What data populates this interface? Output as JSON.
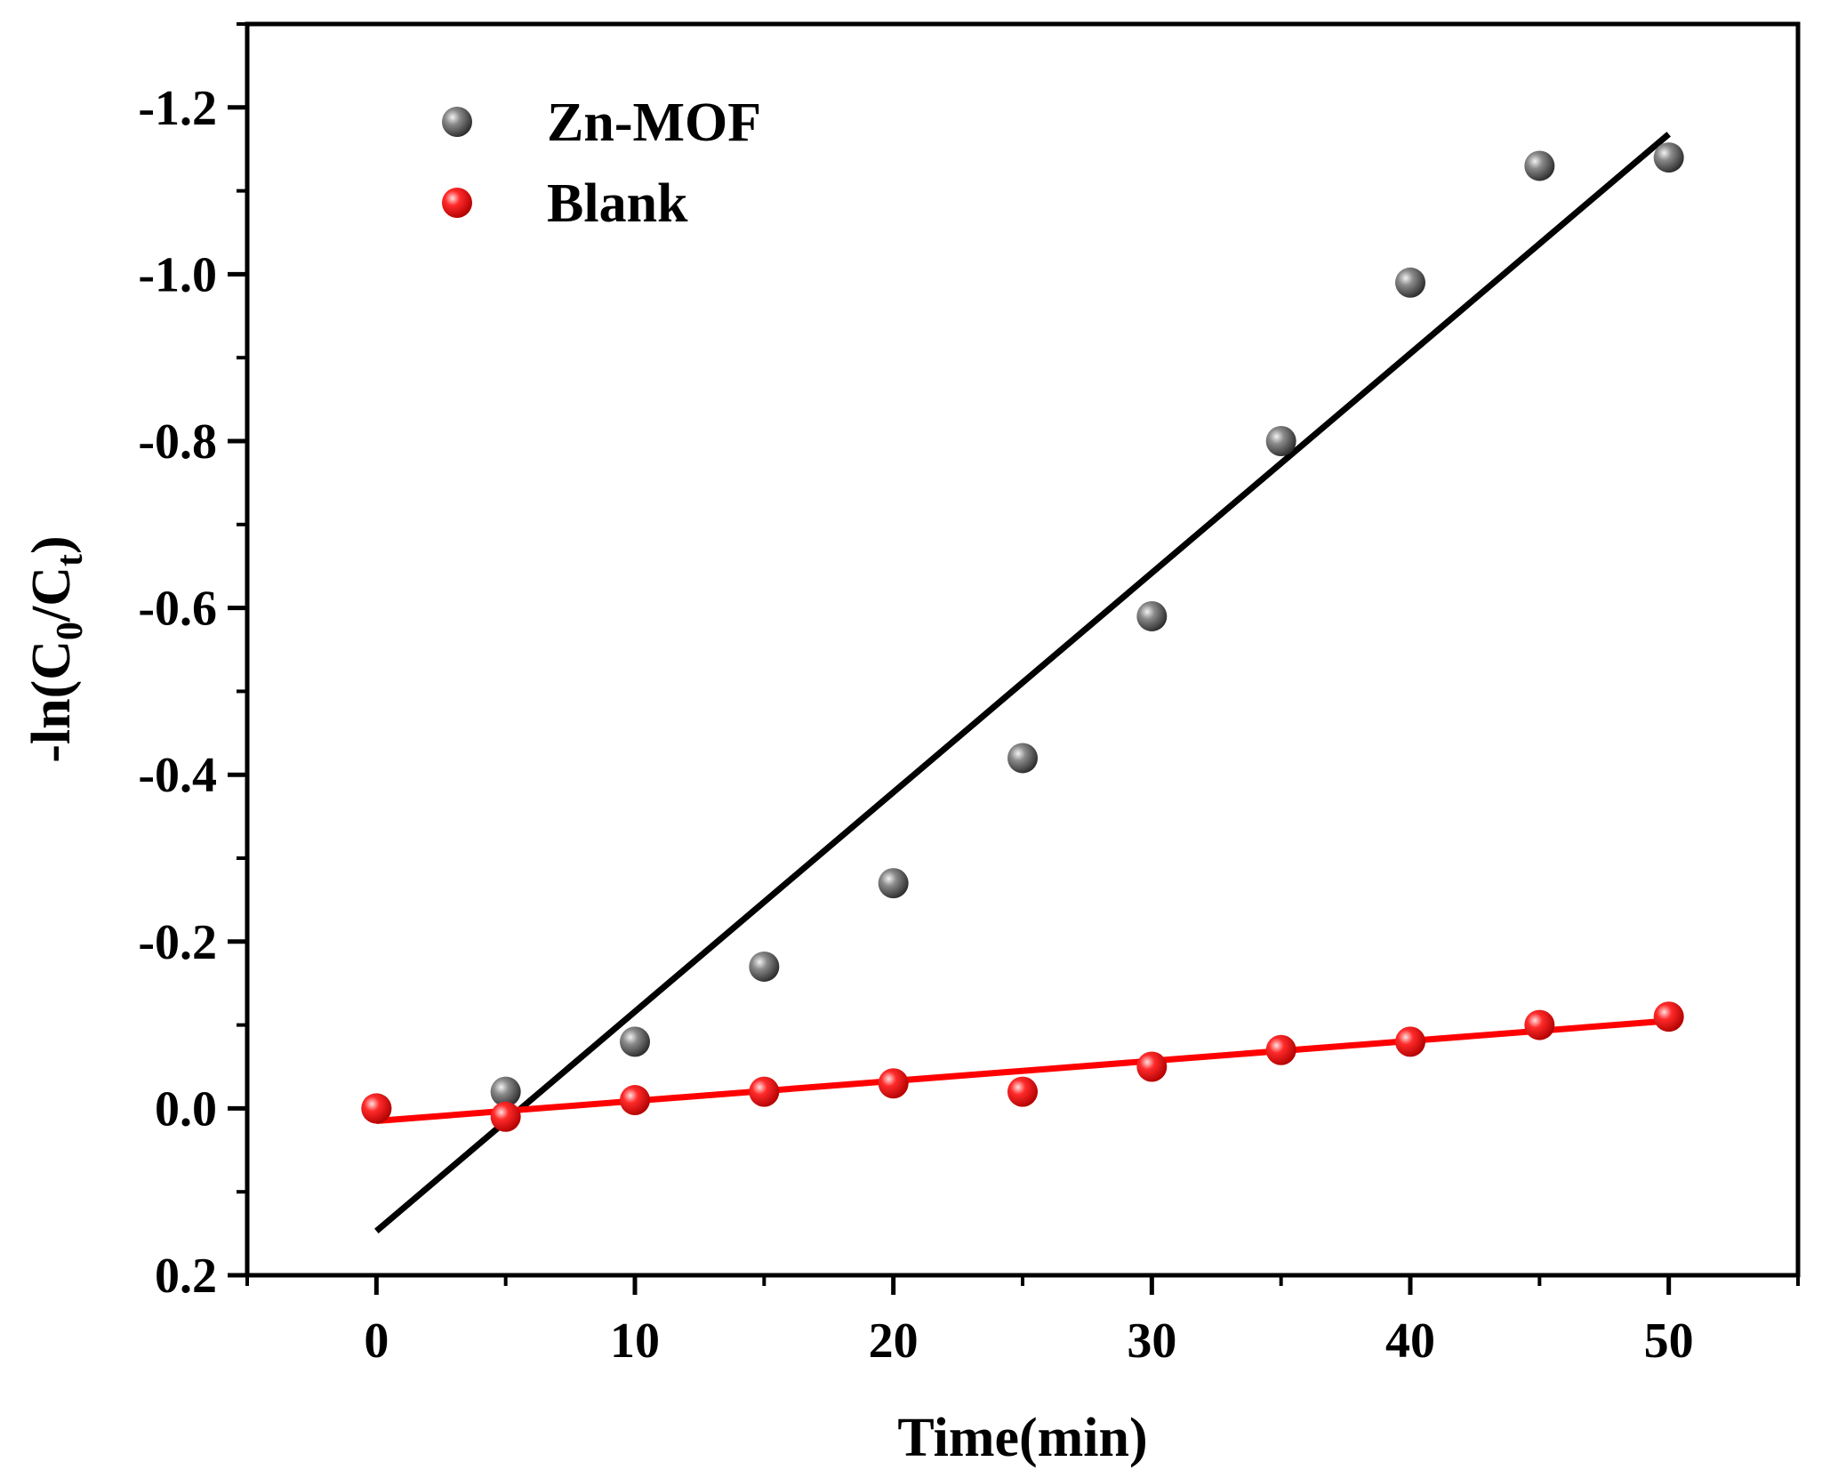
{
  "chart_data": {
    "type": "scatter",
    "title": "",
    "xlabel": "Time(min)",
    "ylabel": {
      "prefix": "-ln(C",
      "sub1": "0",
      "mid": "/C",
      "sub2": "t",
      "suffix": ")"
    },
    "xlim": [
      -5,
      55
    ],
    "ylim": [
      0.2,
      -1.3
    ],
    "y_inverted": true,
    "x_ticks": [
      0,
      10,
      20,
      30,
      40,
      50
    ],
    "x_tick_labels": [
      "0",
      "10",
      "20",
      "30",
      "40",
      "50"
    ],
    "y_ticks": [
      0.2,
      0.0,
      -0.2,
      -0.4,
      -0.6,
      -0.8,
      -1.0,
      -1.2
    ],
    "y_tick_labels": [
      "0.2",
      "0.0",
      "-0.2",
      "-0.4",
      "-0.6",
      "-0.8",
      "-1.0",
      "-1.2"
    ],
    "legend_position": "top-left",
    "series": [
      {
        "name": "Zn-MOF",
        "color": "#555555",
        "fit_color": "#000000",
        "x": [
          0,
          5,
          10,
          15,
          20,
          25,
          30,
          35,
          40,
          45,
          50
        ],
        "y": [
          0.0,
          -0.02,
          -0.08,
          -0.17,
          -0.27,
          -0.42,
          -0.59,
          -0.8,
          -0.99,
          -1.13,
          -1.14
        ],
        "fit": {
          "x": [
            0,
            50
          ],
          "y": [
            0.147,
            -1.168
          ]
        }
      },
      {
        "name": "Blank",
        "color": "#ff1a1a",
        "fit_color": "#ff0000",
        "x": [
          0,
          5,
          10,
          15,
          20,
          25,
          30,
          35,
          40,
          45,
          50
        ],
        "y": [
          0.0,
          0.01,
          -0.01,
          -0.02,
          -0.03,
          -0.02,
          -0.05,
          -0.07,
          -0.08,
          -0.1,
          -0.11
        ],
        "fit": {
          "x": [
            0,
            50
          ],
          "y": [
            0.015,
            -0.105
          ]
        }
      }
    ]
  }
}
